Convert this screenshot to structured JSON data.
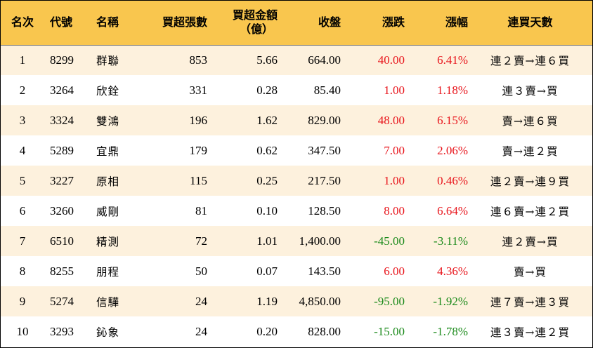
{
  "headers": {
    "rank": "名次",
    "code": "代號",
    "name": "名稱",
    "net_buy_lots": "買超張數",
    "net_buy_amount_line1": "買超金額",
    "net_buy_amount_line2": "（億）",
    "close": "收盤",
    "change": "漲跌",
    "change_pct": "漲幅",
    "streak": "連買天數"
  },
  "colors": {
    "header_bg": "#f9c64e",
    "odd_row_bg": "#fdf1dd",
    "up": "#e8141b",
    "down": "#1a8a1a"
  },
  "rows": [
    {
      "rank": "1",
      "code": "8299",
      "name": "群聯",
      "lots": "853",
      "amount": "5.66",
      "close": "664.00",
      "change": "40.00",
      "pct": "6.41%",
      "streak": "連２賣→連６買",
      "dir": "up"
    },
    {
      "rank": "2",
      "code": "3264",
      "name": "欣銓",
      "lots": "331",
      "amount": "0.28",
      "close": "85.40",
      "change": "1.00",
      "pct": "1.18%",
      "streak": "連３賣→買",
      "dir": "up"
    },
    {
      "rank": "3",
      "code": "3324",
      "name": "雙鴻",
      "lots": "196",
      "amount": "1.62",
      "close": "829.00",
      "change": "48.00",
      "pct": "6.15%",
      "streak": "賣→連６買",
      "dir": "up"
    },
    {
      "rank": "4",
      "code": "5289",
      "name": "宜鼎",
      "lots": "179",
      "amount": "0.62",
      "close": "347.50",
      "change": "7.00",
      "pct": "2.06%",
      "streak": "賣→連２買",
      "dir": "up"
    },
    {
      "rank": "5",
      "code": "3227",
      "name": "原相",
      "lots": "115",
      "amount": "0.25",
      "close": "217.50",
      "change": "1.00",
      "pct": "0.46%",
      "streak": "連２賣→連９買",
      "dir": "up"
    },
    {
      "rank": "6",
      "code": "3260",
      "name": "威剛",
      "lots": "81",
      "amount": "0.10",
      "close": "128.50",
      "change": "8.00",
      "pct": "6.64%",
      "streak": "連６賣→連２買",
      "dir": "up"
    },
    {
      "rank": "7",
      "code": "6510",
      "name": "精測",
      "lots": "72",
      "amount": "1.01",
      "close": "1,400.00",
      "change": "-45.00",
      "pct": "-3.11%",
      "streak": "連２賣→買",
      "dir": "down"
    },
    {
      "rank": "8",
      "code": "8255",
      "name": "朋程",
      "lots": "50",
      "amount": "0.07",
      "close": "143.50",
      "change": "6.00",
      "pct": "4.36%",
      "streak": "賣→買",
      "dir": "up"
    },
    {
      "rank": "9",
      "code": "5274",
      "name": "信驊",
      "lots": "24",
      "amount": "1.19",
      "close": "4,850.00",
      "change": "-95.00",
      "pct": "-1.92%",
      "streak": "連７賣→連３買",
      "dir": "down"
    },
    {
      "rank": "10",
      "code": "3293",
      "name": "鈊象",
      "lots": "24",
      "amount": "0.20",
      "close": "828.00",
      "change": "-15.00",
      "pct": "-1.78%",
      "streak": "連３賣→連２買",
      "dir": "down"
    }
  ]
}
